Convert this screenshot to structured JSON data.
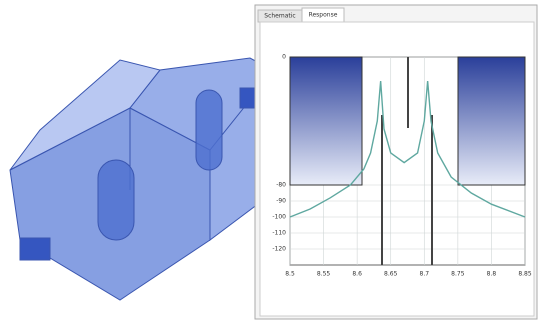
{
  "tabs": [
    "Schematic",
    "Response"
  ],
  "chart_data": {
    "type": "line",
    "x": [
      8.5,
      8.53,
      8.56,
      8.59,
      8.61,
      8.62,
      8.63,
      8.635,
      8.64,
      8.65,
      8.67,
      8.69,
      8.7,
      8.705,
      8.71,
      8.72,
      8.74,
      8.77,
      8.8,
      8.85
    ],
    "series": [
      {
        "color": "#5fa8a0",
        "values": [
          -100,
          -95,
          -88,
          -80,
          -70,
          -60,
          -40,
          -15,
          -45,
          -60,
          -66,
          -60,
          -40,
          -15,
          -40,
          -60,
          -75,
          -85,
          -92,
          -100
        ]
      }
    ],
    "xlim": [
      8.5,
      8.85
    ],
    "xticks": [
      8.5,
      8.55,
      8.6,
      8.65,
      8.7,
      8.75,
      8.8,
      8.85
    ],
    "ylim": [
      -130,
      0
    ],
    "yticks": [
      0,
      -80,
      -90,
      -100,
      -110,
      -120
    ],
    "grid": true
  }
}
